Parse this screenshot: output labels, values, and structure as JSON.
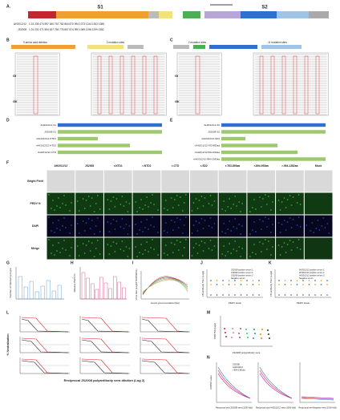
{
  "panels": [
    "A.",
    "B",
    "C",
    "D",
    "E",
    "F",
    "G",
    "H",
    "I",
    "J",
    "K",
    "L",
    "M",
    "N"
  ],
  "a": {
    "domains": [
      "S1",
      "S2"
    ],
    "strains": [
      "AH2012/12",
      "JS2008"
    ],
    "positions": [
      "1  24   235   474  597   640  762  782  864  870   994   1073   1244  1302  1385",
      "1  24   231   471  594   637  756  778  857  874   990   1069   1198  1299  1382"
    ]
  },
  "b": {
    "notes": [
      "9 amino acid deletion",
      "2 mutation sites"
    ],
    "groups": [
      "GI",
      "GII"
    ]
  },
  "c": {
    "notes": [
      "2 mutation sites",
      "11 mutation sites"
    ],
    "groups": [
      "GI",
      "GII"
    ]
  },
  "d": {
    "constructs": [
      "AH2012/12-S1",
      "JS2008-S1",
      "rAH2012/12-NTD1",
      "rAH2012/12-NTD2",
      "rAH2012/12-CTD"
    ]
  },
  "e": {
    "constructs": [
      "AH2012/12-S2",
      "JS2008-S2",
      "rAH2012/12-SD2",
      "rAH2012/12-763-893aa",
      "rAH2012/12-894-993aa",
      "rAH2012/12-994-1382aa"
    ]
  },
  "f": {
    "columns": [
      "AH2012/12",
      "JS2008",
      "r-NTD1",
      "r-NTD2",
      "r-CTD",
      "r-SD2",
      "r-763-893aa",
      "r-894-993aa",
      "r-994-1382aa",
      "Mock"
    ],
    "rows": [
      "Bright Field",
      "PEDV N",
      "DAPI",
      "Merge"
    ]
  },
  "g": {
    "ylabel": "Number of infected syncytia"
  },
  "h": {
    "ylabel": "Relative PEDV N"
  },
  "i": {
    "xlabel": "Hours post-inoculation(hpi)",
    "ylabel": "Virus titer (Log10TCID50/mL)"
  },
  "j": {
    "xlabel": "PEDV strain",
    "ylabel": "VN antibody Titer (Log2)",
    "legend": [
      "JS2008 positive serum 1",
      "JS2008 positive serum 2",
      "JS2008 positive serum 3",
      "Negative serum"
    ]
  },
  "k": {
    "xlabel": "PEDV strain",
    "ylabel": "VN antibody Titer (Log2)",
    "legend": [
      "AH2012/12 positive serum 1",
      "AH2012/12 positive serum 2",
      "AH2012/12 positive serum 3",
      "Negative serum"
    ]
  },
  "l": {
    "xlabel": "Reciprocal JS2008 polyantibody sera dilution (Log 2)",
    "ylabel": "% Neutralization"
  },
  "m": {
    "xlabel": "JS2008 polyantibody sera",
    "ylabel": "PRNT50 (log2)"
  },
  "n": {
    "xlabels": [
      "Reciprocal anti-JS2008 sera (1000-fold)",
      "Reciprocal anti-AH2012/12 sera (1000-fold)",
      "Reciprocal anti-Negative sera (1000-fold)"
    ],
    "ylabel": "OD450 value",
    "legend": [
      "JS2008",
      "AH2012/12",
      "r-994-1382aa"
    ]
  }
}
